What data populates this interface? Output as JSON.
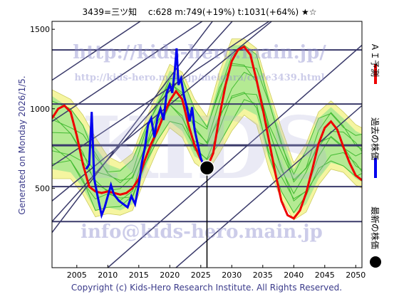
{
  "chart_data": {
    "type": "line",
    "title": "3439=三ツ知　 c:628  m:749(+19%)  t:1031(+64%)  ★☆",
    "xlim": [
      2001,
      2051
    ],
    "ylim": [
      0,
      1550
    ],
    "x_ticks": [
      2005,
      2010,
      2015,
      2020,
      2025,
      2030,
      2035,
      2040,
      2045,
      2050
    ],
    "y_ticks": [
      500,
      1000,
      1500
    ],
    "horizontal_levels": [
      290,
      510,
      770,
      1030,
      1370
    ],
    "series": [
      {
        "name": "過去の株価",
        "color": "#0000ee",
        "points": [
          [
            2006.5,
            620
          ],
          [
            2007.0,
            650
          ],
          [
            2007.4,
            980
          ],
          [
            2007.8,
            560
          ],
          [
            2008.3,
            460
          ],
          [
            2009.0,
            330
          ],
          [
            2009.5,
            380
          ],
          [
            2010.0,
            450
          ],
          [
            2010.5,
            520
          ],
          [
            2011.0,
            460
          ],
          [
            2011.8,
            420
          ],
          [
            2012.5,
            400
          ],
          [
            2013.2,
            380
          ],
          [
            2013.8,
            450
          ],
          [
            2014.4,
            400
          ],
          [
            2015.0,
            520
          ],
          [
            2015.5,
            660
          ],
          [
            2016.0,
            760
          ],
          [
            2016.5,
            900
          ],
          [
            2017.0,
            940
          ],
          [
            2017.5,
            820
          ],
          [
            2018.0,
            940
          ],
          [
            2018.5,
            1000
          ],
          [
            2019.0,
            930
          ],
          [
            2019.5,
            1100
          ],
          [
            2020.0,
            1150
          ],
          [
            2020.4,
            1100
          ],
          [
            2020.8,
            1240
          ],
          [
            2021.1,
            1380
          ],
          [
            2021.4,
            1150
          ],
          [
            2021.8,
            1190
          ],
          [
            2022.3,
            1080
          ],
          [
            2022.8,
            1000
          ],
          [
            2023.2,
            920
          ],
          [
            2023.6,
            1010
          ],
          [
            2024.0,
            870
          ],
          [
            2024.5,
            780
          ],
          [
            2025.0,
            690
          ],
          [
            2025.5,
            640
          ],
          [
            2025.9,
            628
          ]
        ]
      },
      {
        "name": "ＡＩ予測",
        "color": "#ee0000",
        "points": [
          [
            2001,
            940
          ],
          [
            2002,
            1000
          ],
          [
            2003,
            1020
          ],
          [
            2004,
            980
          ],
          [
            2005,
            830
          ],
          [
            2006,
            650
          ],
          [
            2007,
            510
          ],
          [
            2008,
            480
          ],
          [
            2009,
            470
          ],
          [
            2010,
            480
          ],
          [
            2011,
            470
          ],
          [
            2012,
            460
          ],
          [
            2013,
            470
          ],
          [
            2014,
            500
          ],
          [
            2015,
            560
          ],
          [
            2016,
            680
          ],
          [
            2017,
            780
          ],
          [
            2018,
            860
          ],
          [
            2019,
            960
          ],
          [
            2020,
            1050
          ],
          [
            2021,
            1110
          ],
          [
            2022,
            1060
          ],
          [
            2023,
            900
          ],
          [
            2024,
            770
          ],
          [
            2025,
            680
          ],
          [
            2026,
            628
          ],
          [
            2027,
            720
          ],
          [
            2028,
            950
          ],
          [
            2029,
            1150
          ],
          [
            2030,
            1300
          ],
          [
            2031,
            1370
          ],
          [
            2032,
            1390
          ],
          [
            2033,
            1340
          ],
          [
            2034,
            1180
          ],
          [
            2035,
            1000
          ],
          [
            2036,
            800
          ],
          [
            2037,
            600
          ],
          [
            2038,
            420
          ],
          [
            2039,
            330
          ],
          [
            2040,
            310
          ],
          [
            2041,
            360
          ],
          [
            2042,
            470
          ],
          [
            2043,
            620
          ],
          [
            2044,
            780
          ],
          [
            2045,
            880
          ],
          [
            2046,
            920
          ],
          [
            2047,
            870
          ],
          [
            2048,
            760
          ],
          [
            2049,
            660
          ],
          [
            2050,
            580
          ],
          [
            2051,
            550
          ]
        ]
      }
    ],
    "latest": {
      "name": "最新の株価",
      "x": 2026,
      "y": 628
    },
    "trend_lines": [
      {
        "from": [
          2000,
          170
        ],
        "to": [
          2030,
          1710
        ]
      },
      {
        "from": [
          2001,
          290
        ],
        "to": [
          2034,
          1720
        ]
      },
      {
        "from": [
          2001,
          420
        ],
        "to": [
          2043,
          1760
        ]
      },
      {
        "from": [
          2001,
          640
        ],
        "to": [
          2051,
          1940
        ]
      },
      {
        "from": [
          2001,
          920
        ],
        "to": [
          2051,
          2220
        ]
      },
      {
        "from": [
          2001,
          1180
        ],
        "to": [
          2051,
          2480
        ]
      },
      {
        "from": [
          2010,
          0
        ],
        "to": [
          2051,
          1400
        ]
      },
      {
        "from": [
          2021,
          0
        ],
        "to": [
          2051,
          1020
        ]
      }
    ],
    "band": [
      [
        2001,
        560,
        1120
      ],
      [
        2004,
        560,
        1060
      ],
      [
        2006,
        460,
        960
      ],
      [
        2008,
        320,
        820
      ],
      [
        2010,
        340,
        700
      ],
      [
        2012,
        330,
        660
      ],
      [
        2014,
        360,
        720
      ],
      [
        2016,
        560,
        920
      ],
      [
        2018,
        740,
        1100
      ],
      [
        2020,
        880,
        1280
      ],
      [
        2022,
        820,
        1230
      ],
      [
        2024,
        660,
        1060
      ],
      [
        2026,
        600,
        950
      ],
      [
        2028,
        720,
        1230
      ],
      [
        2030,
        860,
        1440
      ],
      [
        2032,
        960,
        1440
      ],
      [
        2034,
        900,
        1380
      ],
      [
        2036,
        620,
        1120
      ],
      [
        2038,
        430,
        880
      ],
      [
        2040,
        300,
        660
      ],
      [
        2042,
        350,
        780
      ],
      [
        2044,
        520,
        980
      ],
      [
        2046,
        620,
        1050
      ],
      [
        2048,
        600,
        980
      ],
      [
        2050,
        520,
        900
      ],
      [
        2051,
        500,
        880
      ]
    ],
    "green_band": [
      [
        2001,
        620,
        1080
      ],
      [
        2004,
        600,
        1000
      ],
      [
        2006,
        500,
        900
      ],
      [
        2008,
        360,
        760
      ],
      [
        2010,
        380,
        650
      ],
      [
        2012,
        360,
        620
      ],
      [
        2014,
        400,
        680
      ],
      [
        2016,
        620,
        880
      ],
      [
        2018,
        800,
        1060
      ],
      [
        2020,
        920,
        1240
      ],
      [
        2022,
        860,
        1200
      ],
      [
        2024,
        700,
        1000
      ],
      [
        2026,
        660,
        900
      ],
      [
        2028,
        780,
        1180
      ],
      [
        2030,
        920,
        1400
      ],
      [
        2032,
        1000,
        1400
      ],
      [
        2034,
        960,
        1340
      ],
      [
        2036,
        680,
        1080
      ],
      [
        2038,
        480,
        840
      ],
      [
        2040,
        340,
        620
      ],
      [
        2042,
        400,
        740
      ],
      [
        2044,
        560,
        940
      ],
      [
        2046,
        660,
        1010
      ],
      [
        2048,
        640,
        940
      ],
      [
        2050,
        560,
        860
      ],
      [
        2051,
        540,
        840
      ]
    ],
    "colors": {
      "band": "#f5f5a0",
      "green": "#a8e890",
      "green_line": "#44bb33",
      "grid_line": "#3a3a6a",
      "axis": "#000000"
    }
  },
  "side_label": "Generated on Monday 2026/1/5.",
  "legend": {
    "prediction": "ＡＩ予測",
    "past": "過去の株価",
    "latest": "最新の株価"
  },
  "watermarks": {
    "url_big": "http://kids-hero.main.jp/",
    "url_small": "http://kids-hero.main.jp/meigara/code3439.html",
    "email": "info@kids-hero.main.jp",
    "kids": "KIDS"
  },
  "footer": "Copyright (c) Kids-Hero Research Institute. All Rights Reserved."
}
